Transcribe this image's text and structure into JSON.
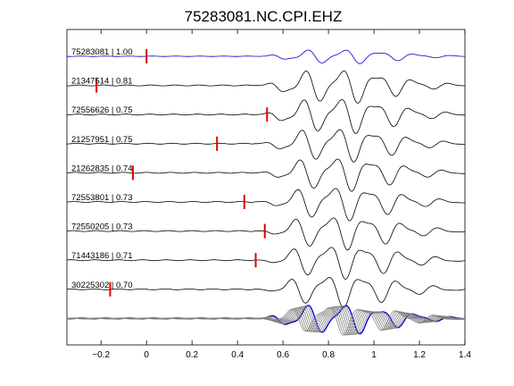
{
  "chart_data": {
    "type": "line",
    "title": "75283081.NC.CPI.EHZ",
    "xlabel": "",
    "ylabel": "",
    "xlim": [
      -0.35,
      1.4
    ],
    "xticks": [
      -0.2,
      0,
      0.2,
      0.4,
      0.6,
      0.8,
      1,
      1.2,
      1.4
    ],
    "xtick_labels": [
      "−0.2",
      "0",
      "0.2",
      "0.4",
      "0.6",
      "0.8",
      "1",
      "1.2",
      "1.4"
    ],
    "grid": false,
    "colors": {
      "reference": "#0000cc",
      "trace": "#000000",
      "stack": "#808080",
      "pick": "#e00000"
    },
    "traces": [
      {
        "label": "75283081 | 1.00",
        "pick": 0.0,
        "shift": 0.0,
        "amp": 0.42,
        "ref": true
      },
      {
        "label": "21347514 | 0.81",
        "pick": -0.22,
        "shift": 0.0,
        "amp": 1.0
      },
      {
        "label": "72556626 | 0.75",
        "pick": 0.53,
        "shift": 0.0,
        "amp": 1.05
      },
      {
        "label": "21257951 | 0.75",
        "pick": 0.31,
        "shift": 0.0,
        "amp": 1.0
      },
      {
        "label": "21262835 | 0.74",
        "pick": -0.06,
        "shift": 0.0,
        "amp": 1.0
      },
      {
        "label": "72553801 | 0.73",
        "pick": 0.43,
        "shift": 0.0,
        "amp": 1.0
      },
      {
        "label": "72550205 | 0.73",
        "pick": 0.52,
        "shift": 0.0,
        "amp": 1.0
      },
      {
        "label": "71443186 | 0.71",
        "pick": 0.48,
        "shift": 0.0,
        "amp": 1.0
      },
      {
        "label": "30225302 | 0.70",
        "pick": -0.16,
        "shift": 0.0,
        "amp": 0.95
      }
    ]
  }
}
